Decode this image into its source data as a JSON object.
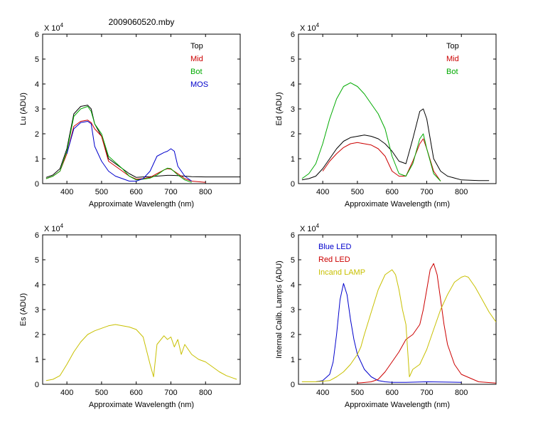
{
  "figure_title": "2009060520.mby",
  "colors": {
    "black": "#000000",
    "red": "#cc0000",
    "green": "#00aa00",
    "blue": "#0000cc",
    "yellow": "#c8c000"
  },
  "chart_data": [
    {
      "type": "line",
      "ylabel": "Lu (ADU)",
      "xlabel": "Approximate Wavelength (nm)",
      "multiplier": "X 10",
      "exponent": "4",
      "xlim": [
        330,
        900
      ],
      "ylim": [
        0,
        6
      ],
      "xticks": [
        400,
        500,
        600,
        700,
        800
      ],
      "yticks": [
        0,
        1,
        2,
        3,
        4,
        5,
        6
      ],
      "legend_position": "top-right",
      "series": [
        {
          "name": "Top",
          "color": "#000000",
          "x": [
            340,
            360,
            380,
            400,
            420,
            440,
            460,
            470,
            480,
            500,
            520,
            540,
            560,
            580,
            600,
            620,
            640,
            660,
            680,
            690,
            700,
            720,
            740,
            760,
            800,
            900
          ],
          "y": [
            0.25,
            0.35,
            0.6,
            1.4,
            2.8,
            3.1,
            3.15,
            3.0,
            2.4,
            1.9,
            1.0,
            0.8,
            0.6,
            0.4,
            0.25,
            0.27,
            0.28,
            0.3,
            0.32,
            0.33,
            0.33,
            0.32,
            0.3,
            0.28,
            0.27,
            0.27
          ]
        },
        {
          "name": "Mid",
          "color": "#cc0000",
          "x": [
            340,
            360,
            380,
            400,
            420,
            440,
            460,
            470,
            480,
            500,
            520,
            540,
            560,
            580,
            600,
            620,
            640,
            660,
            680,
            690,
            700,
            720,
            740,
            760,
            800
          ],
          "y": [
            0.2,
            0.3,
            0.5,
            1.2,
            2.3,
            2.5,
            2.55,
            2.45,
            2.2,
            1.9,
            0.9,
            0.7,
            0.5,
            0.3,
            0.18,
            0.2,
            0.25,
            0.4,
            0.55,
            0.6,
            0.58,
            0.4,
            0.2,
            0.1,
            0.05
          ]
        },
        {
          "name": "Bot",
          "color": "#00aa00",
          "x": [
            340,
            360,
            380,
            400,
            420,
            440,
            460,
            470,
            480,
            500,
            520,
            540,
            560,
            580,
            600,
            620,
            640,
            660,
            680,
            690,
            700,
            720,
            740,
            760
          ],
          "y": [
            0.2,
            0.3,
            0.5,
            1.3,
            2.7,
            3.0,
            3.1,
            2.9,
            2.4,
            2.0,
            1.1,
            0.85,
            0.6,
            0.3,
            0.15,
            0.18,
            0.22,
            0.35,
            0.55,
            0.62,
            0.6,
            0.35,
            0.15,
            0.05
          ]
        },
        {
          "name": "MOS",
          "color": "#0000cc",
          "x": [
            400,
            420,
            440,
            460,
            470,
            480,
            500,
            520,
            540,
            560,
            580,
            600,
            620,
            640,
            660,
            680,
            690,
            700,
            710,
            720,
            740,
            760
          ],
          "y": [
            1.2,
            2.2,
            2.45,
            2.5,
            2.4,
            1.5,
            0.9,
            0.5,
            0.3,
            0.2,
            0.1,
            0.1,
            0.2,
            0.5,
            1.1,
            1.25,
            1.3,
            1.4,
            1.3,
            0.7,
            0.3,
            0.1
          ]
        }
      ]
    },
    {
      "type": "line",
      "ylabel": "Ed  (ADU)",
      "xlabel": "Approximate Wavelength (nm)",
      "multiplier": "X 10",
      "exponent": "4",
      "xlim": [
        330,
        900
      ],
      "ylim": [
        0,
        6
      ],
      "xticks": [
        400,
        500,
        600,
        700,
        800
      ],
      "yticks": [
        0,
        1,
        2,
        3,
        4,
        5,
        6
      ],
      "legend_position": "top-right",
      "series": [
        {
          "name": "Top",
          "color": "#000000",
          "x": [
            340,
            360,
            380,
            400,
            420,
            440,
            460,
            480,
            500,
            520,
            540,
            560,
            580,
            600,
            620,
            640,
            660,
            680,
            690,
            700,
            720,
            740,
            760,
            800,
            850,
            880
          ],
          "y": [
            0.15,
            0.2,
            0.3,
            0.6,
            1.0,
            1.4,
            1.7,
            1.85,
            1.9,
            1.95,
            1.9,
            1.8,
            1.6,
            1.3,
            0.9,
            0.8,
            1.8,
            2.9,
            3.0,
            2.6,
            1.0,
            0.5,
            0.3,
            0.15,
            0.12,
            0.12
          ]
        },
        {
          "name": "Mid",
          "color": "#cc0000",
          "x": [
            400,
            420,
            440,
            460,
            480,
            500,
            520,
            540,
            560,
            580,
            600,
            620,
            640,
            660,
            680,
            690,
            700,
            720,
            740
          ],
          "y": [
            0.5,
            0.9,
            1.2,
            1.45,
            1.6,
            1.65,
            1.6,
            1.55,
            1.4,
            1.1,
            0.5,
            0.3,
            0.3,
            0.9,
            1.6,
            1.8,
            1.4,
            0.5,
            0.1
          ]
        },
        {
          "name": "Bot",
          "color": "#00aa00",
          "x": [
            340,
            360,
            380,
            400,
            420,
            440,
            460,
            480,
            500,
            520,
            540,
            560,
            580,
            600,
            620,
            640,
            660,
            680,
            690,
            700,
            720,
            740
          ],
          "y": [
            0.2,
            0.4,
            0.8,
            1.6,
            2.6,
            3.4,
            3.9,
            4.05,
            3.9,
            3.6,
            3.2,
            2.8,
            2.2,
            1.1,
            0.4,
            0.3,
            0.8,
            1.8,
            2.0,
            1.4,
            0.4,
            0.1
          ]
        }
      ]
    },
    {
      "type": "line",
      "ylabel": "Es  (ADU)",
      "xlabel": "Approximate Wavelength (nm)",
      "multiplier": "X 10",
      "exponent": "4",
      "xlim": [
        330,
        900
      ],
      "ylim": [
        0,
        6
      ],
      "xticks": [
        400,
        500,
        600,
        700,
        800
      ],
      "yticks": [
        0,
        1,
        2,
        3,
        4,
        5,
        6
      ],
      "legend_position": "none",
      "series": [
        {
          "name": "",
          "color": "#c8c000",
          "x": [
            340,
            360,
            380,
            400,
            420,
            440,
            460,
            480,
            500,
            520,
            540,
            560,
            580,
            600,
            620,
            640,
            650,
            660,
            680,
            690,
            700,
            710,
            720,
            730,
            740,
            760,
            780,
            800,
            820,
            840,
            860,
            880,
            890
          ],
          "y": [
            0.15,
            0.2,
            0.35,
            0.8,
            1.3,
            1.7,
            2.0,
            2.15,
            2.25,
            2.35,
            2.4,
            2.35,
            2.3,
            2.2,
            1.9,
            0.8,
            0.3,
            1.6,
            1.95,
            1.8,
            1.9,
            1.5,
            1.8,
            1.2,
            1.6,
            1.2,
            1.0,
            0.9,
            0.7,
            0.5,
            0.35,
            0.25,
            0.2
          ]
        }
      ]
    },
    {
      "type": "line",
      "ylabel": "Internal Calib. Lamps (ADU)",
      "xlabel": "Approximate Wavelength (nm)",
      "multiplier": "X 10",
      "exponent": "4",
      "xlim": [
        330,
        900
      ],
      "ylim": [
        0,
        6
      ],
      "xticks": [
        400,
        500,
        600,
        700,
        800
      ],
      "yticks": [
        0,
        1,
        2,
        3,
        4,
        5,
        6
      ],
      "legend_position": "top-left",
      "series": [
        {
          "name": "Blue LED",
          "color": "#0000cc",
          "x": [
            340,
            380,
            400,
            420,
            430,
            440,
            450,
            460,
            470,
            480,
            490,
            500,
            520,
            540,
            560,
            580,
            600,
            640,
            700,
            800
          ],
          "y": [
            0.1,
            0.1,
            0.15,
            0.4,
            0.9,
            2.0,
            3.4,
            4.05,
            3.6,
            2.6,
            1.8,
            1.2,
            0.6,
            0.3,
            0.15,
            0.1,
            0.08,
            0.08,
            0.1,
            0.08
          ]
        },
        {
          "name": "Red LED",
          "color": "#cc0000",
          "x": [
            500,
            540,
            560,
            580,
            600,
            620,
            640,
            660,
            680,
            690,
            700,
            710,
            720,
            730,
            740,
            750,
            760,
            780,
            800,
            850,
            900
          ],
          "y": [
            0.05,
            0.1,
            0.2,
            0.5,
            0.9,
            1.3,
            1.8,
            2.0,
            2.4,
            3.0,
            3.8,
            4.6,
            4.85,
            4.4,
            3.4,
            2.4,
            1.6,
            0.8,
            0.4,
            0.1,
            0.05
          ]
        },
        {
          "name": "Incand LAMP",
          "color": "#c8c000",
          "x": [
            340,
            380,
            420,
            440,
            460,
            480,
            500,
            510,
            520,
            540,
            560,
            580,
            600,
            610,
            620,
            630,
            640,
            650,
            660,
            680,
            700,
            720,
            740,
            760,
            780,
            800,
            810,
            820,
            840,
            860,
            880,
            900
          ],
          "y": [
            0.1,
            0.1,
            0.15,
            0.3,
            0.5,
            0.8,
            1.2,
            1.5,
            2.0,
            2.9,
            3.8,
            4.4,
            4.6,
            4.4,
            3.8,
            3.0,
            2.4,
            0.3,
            0.6,
            0.8,
            1.4,
            2.2,
            3.0,
            3.6,
            4.1,
            4.3,
            4.35,
            4.3,
            3.9,
            3.4,
            2.9,
            2.5
          ]
        }
      ]
    }
  ]
}
